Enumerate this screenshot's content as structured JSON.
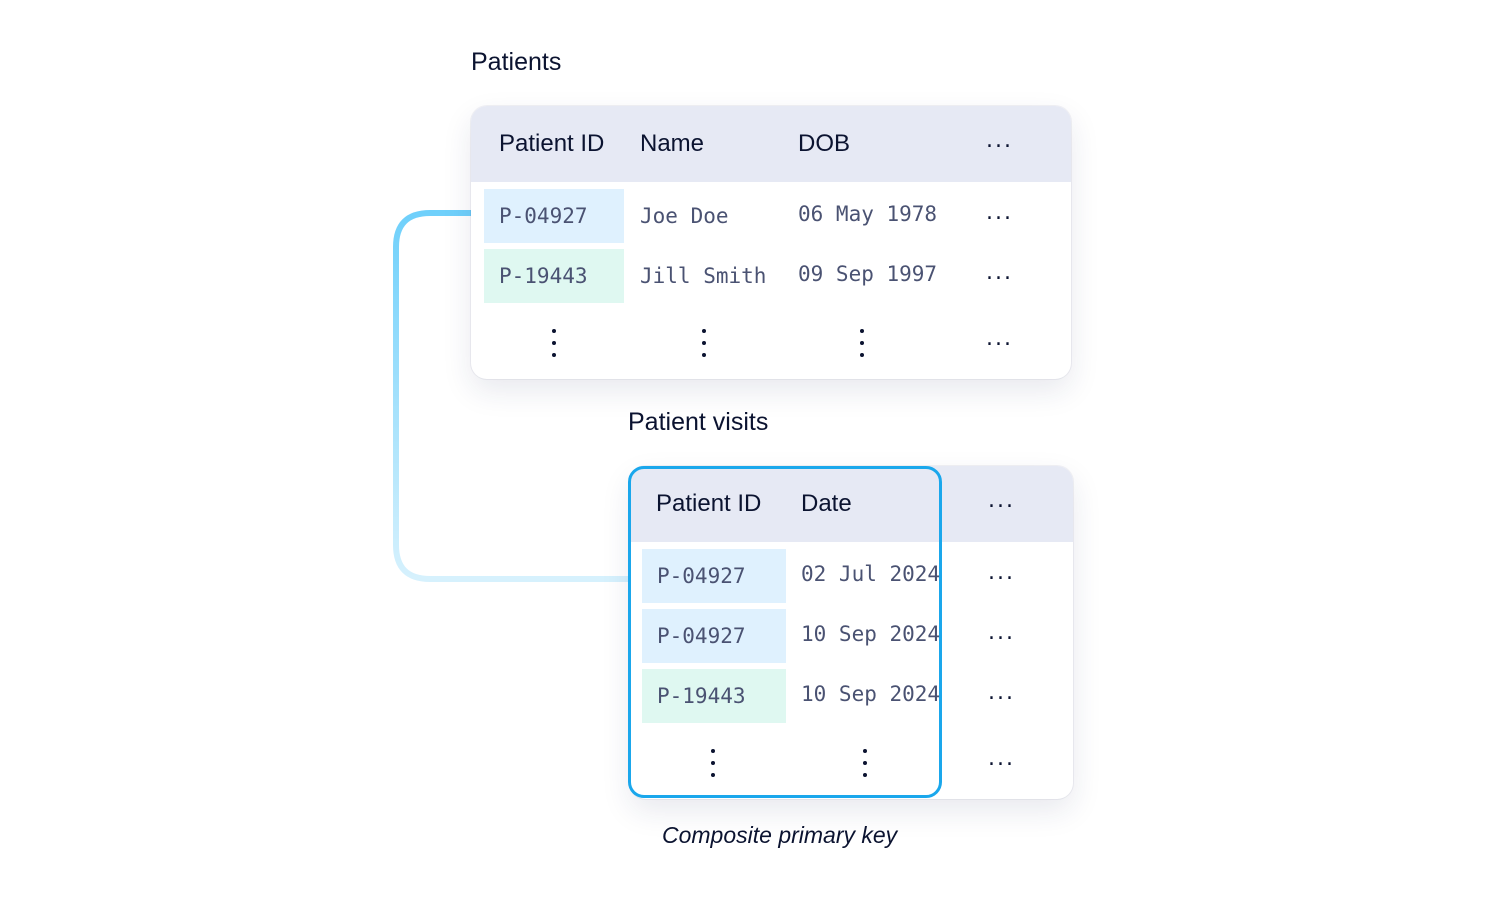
{
  "patients": {
    "title": "Patients",
    "headers": [
      "Patient ID",
      "Name",
      "DOB"
    ],
    "more": "...",
    "rows": [
      {
        "id": "P-04927",
        "name": "Joe Doe",
        "dob": "06 May 1978"
      },
      {
        "id": "P-19443",
        "name": "Jill Smith",
        "dob": "09 Sep 1997"
      }
    ]
  },
  "visits": {
    "title": "Patient visits",
    "headers": [
      "Patient ID",
      "Date"
    ],
    "more": "...",
    "rows": [
      {
        "id": "P-04927",
        "date": "02 Jul 2024"
      },
      {
        "id": "P-04927",
        "date": "10 Sep 2024"
      },
      {
        "id": "P-19443",
        "date": "10 Sep 2024"
      }
    ]
  },
  "caption": "Composite primary key",
  "colors": {
    "header_bg": "#e6e9f4",
    "id_blue": "#dff1fe",
    "id_mint": "#dff8f1",
    "connector": "#7fd6fb",
    "highlight_border": "#1aa7ec"
  }
}
